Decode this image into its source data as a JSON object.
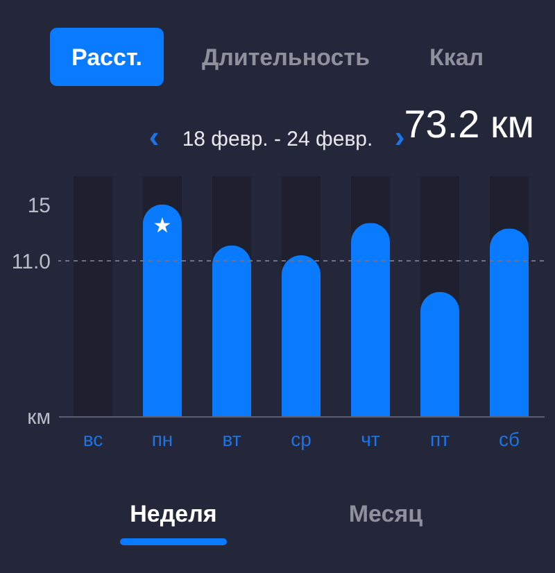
{
  "chart_data": {
    "type": "bar",
    "title": "73.2 км",
    "subtitle": "18 февр. - 24 февр.",
    "categories": [
      "вс",
      "пн",
      "вт",
      "ср",
      "чт",
      "пт",
      "сб"
    ],
    "values": [
      null,
      15.0,
      12.1,
      11.4,
      13.7,
      8.8,
      13.3
    ],
    "color": "#0a7aff",
    "ylim": [
      0,
      17
    ],
    "yticks": [
      {
        "value": 0,
        "label": "км"
      },
      {
        "value": 11,
        "label": "11.0"
      },
      15
    ],
    "grid": false,
    "ref_lines": [
      {
        "axis": "y",
        "value": 11,
        "line_style": "dashed",
        "color": "#6f7282"
      }
    ],
    "bands": [
      {
        "axis": "x",
        "from": "вс",
        "to": "вс",
        "color": "#1e2030"
      },
      {
        "axis": "x",
        "from": "пн",
        "to": "пн",
        "color": "#1e2030"
      },
      {
        "axis": "x",
        "from": "вт",
        "to": "вт",
        "color": "#1e2030"
      },
      {
        "axis": "x",
        "from": "ср",
        "to": "ср",
        "color": "#1e2030"
      },
      {
        "axis": "x",
        "from": "чт",
        "to": "чт",
        "color": "#1e2030"
      },
      {
        "axis": "x",
        "from": "пт",
        "to": "пт",
        "color": "#1e2030"
      },
      {
        "axis": "x",
        "from": "сб",
        "to": "сб",
        "color": "#1e2030"
      }
    ],
    "annotations": [
      "Расст.",
      "Длительность",
      "Ккал",
      "‹",
      "›",
      "Неделя",
      "Месяц",
      {
        "text": "★",
        "x": "пн",
        "y": 15.0
      }
    ]
  }
}
